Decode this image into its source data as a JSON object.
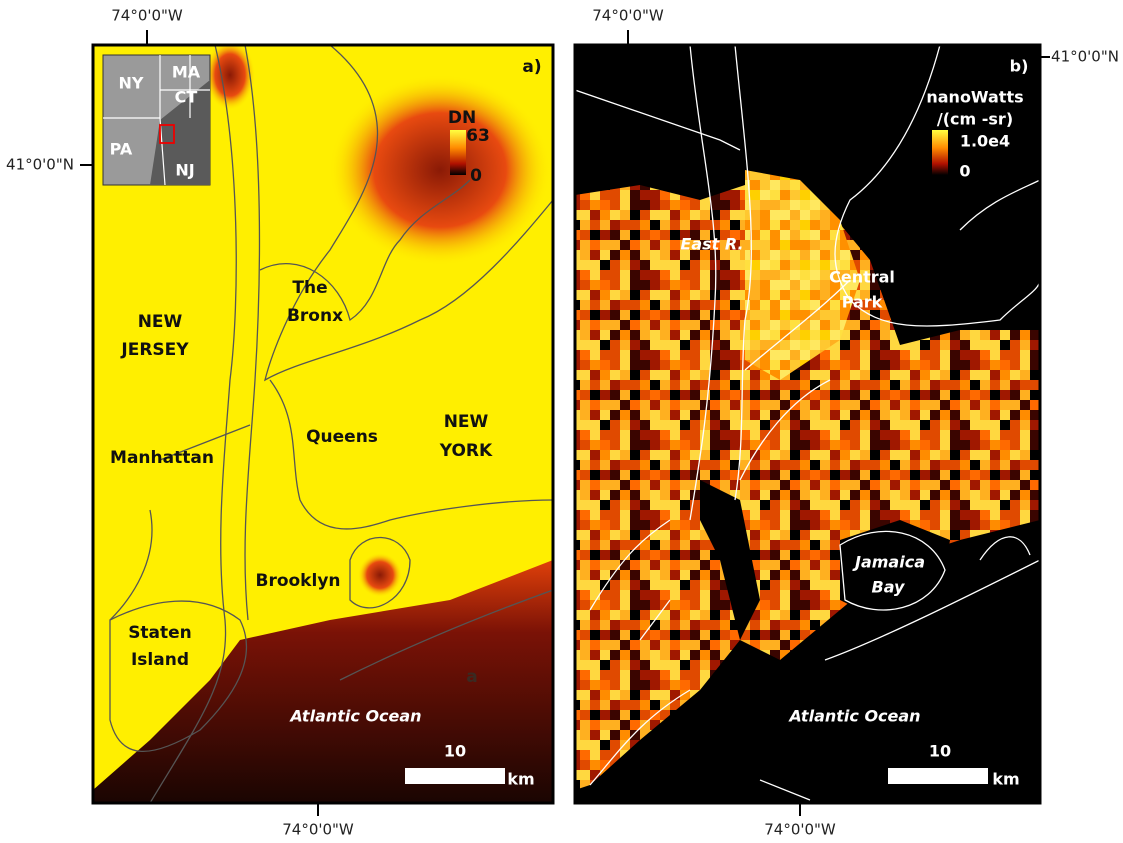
{
  "panels": [
    {
      "label": "a)",
      "coords": {
        "top": "74°0'0\"W",
        "left": "41°0'0\"N",
        "bottom": "74°0'0\"W"
      },
      "inset": {
        "labels": [
          "NY",
          "MA",
          "CT",
          "PA",
          "NJ"
        ]
      },
      "legend": {
        "title": "DN",
        "max": "63",
        "min": "0"
      },
      "places": [
        {
          "lines": [
            "The",
            "Bronx"
          ]
        },
        {
          "lines": [
            "NEW",
            "JERSEY"
          ]
        },
        {
          "lines": [
            "Manhattan"
          ]
        },
        {
          "lines": [
            "Queens"
          ]
        },
        {
          "lines": [
            "NEW",
            "YORK"
          ]
        },
        {
          "lines": [
            "Brooklyn"
          ]
        },
        {
          "lines": [
            "Staten",
            "Island"
          ]
        },
        {
          "lines": [
            "Atlantic Ocean"
          ]
        }
      ],
      "stray": "a",
      "scale_bar": {
        "length": "10",
        "unit": "km"
      }
    },
    {
      "label": "b)",
      "coords": {
        "top": "74°0'0\"W",
        "right": "41°0'0\"N",
        "bottom": "74°0'0\"W"
      },
      "legend": {
        "title": [
          "nanoWatts",
          "/(cm -sr)"
        ],
        "max": "1.0e4",
        "min": "0"
      },
      "places": [
        {
          "lines": [
            "East R."
          ]
        },
        {
          "lines": [
            "Central",
            "Park"
          ]
        },
        {
          "lines": [
            "Jamaica",
            "Bay"
          ]
        },
        {
          "lines": [
            "Atlantic Ocean"
          ]
        }
      ],
      "scale_bar": {
        "length": "10",
        "unit": "km"
      }
    }
  ]
}
